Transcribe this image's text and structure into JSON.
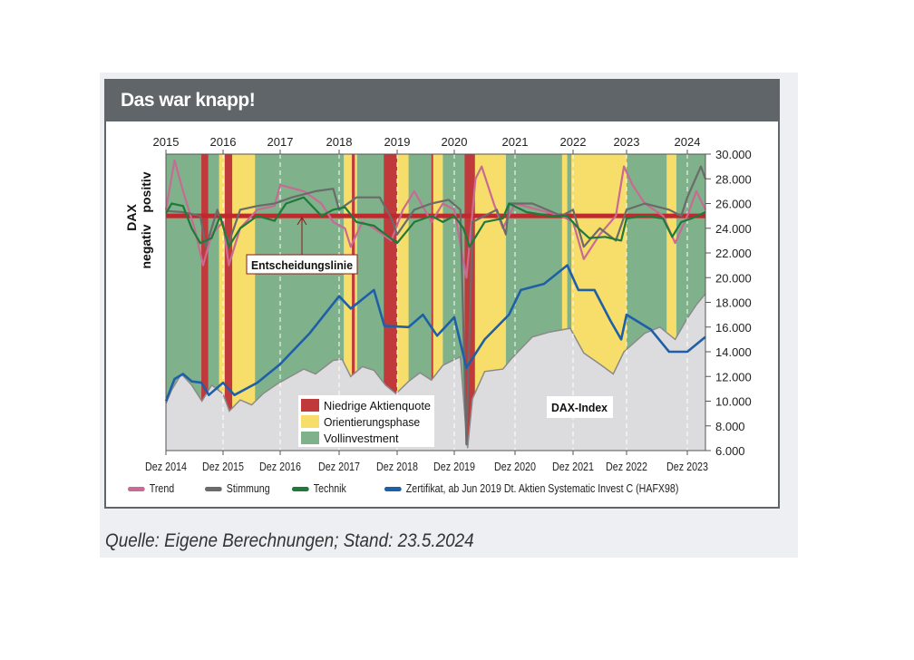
{
  "title": "Das war knapp!",
  "source": "Quelle: Eigene Berechnungen; Stand: 23.5.2024",
  "chart_data": {
    "type": "line",
    "title": "Das war knapp!",
    "ylabel": {
      "main": "DAX",
      "upper": "positiv",
      "lower": "negativ"
    },
    "ylim": [
      6000,
      30000
    ],
    "y_ticks": [
      6000,
      8000,
      10000,
      12000,
      14000,
      16000,
      18000,
      20000,
      22000,
      24000,
      26000,
      28000,
      30000
    ],
    "xlim": [
      2015.0,
      2024.4
    ],
    "top_ticks": [
      {
        "x": 2015,
        "label": "2015"
      },
      {
        "x": 2016,
        "label": "2016"
      },
      {
        "x": 2017,
        "label": "2017"
      },
      {
        "x": 2018,
        "label": "2018"
      },
      {
        "x": 2019,
        "label": "2019"
      },
      {
        "x": 2020,
        "label": "2020"
      },
      {
        "x": 2021,
        "label": "2021"
      },
      {
        "x": 2022,
        "label": "2022"
      },
      {
        "x": 2023,
        "label": "2023"
      },
      {
        "x": 2024,
        "label": "2024"
      }
    ],
    "bottom_ticks": [
      {
        "x": 2015,
        "label": "Dez 2014"
      },
      {
        "x": 2016,
        "label": "Dez 2015"
      },
      {
        "x": 2017,
        "label": "Dez 2016"
      },
      {
        "x": 2018,
        "label": "Dez 2017"
      },
      {
        "x": 2019,
        "label": "Dez 2018"
      },
      {
        "x": 2020,
        "label": "Dez 2019"
      },
      {
        "x": 2021,
        "label": "Dez 2020"
      },
      {
        "x": 2022,
        "label": "Dez 2021"
      },
      {
        "x": 2023,
        "label": "Dez 2022"
      },
      {
        "x": 2024,
        "label": "Dez 2023"
      }
    ],
    "decision_line": {
      "value": 25000,
      "label": "Entscheidungslinie",
      "color": "#c0282d"
    },
    "phase_legend": [
      {
        "key": "red",
        "label": "Niedrige Aktienquote",
        "color": "#c0393b"
      },
      {
        "key": "yellow",
        "label": "Orientierungsphase",
        "color": "#f7de6a"
      },
      {
        "key": "green",
        "label": "Vollinvestment",
        "color": "#7fb28a"
      }
    ],
    "phases": [
      [
        "green",
        2015.0,
        2015.62
      ],
      [
        "red",
        2015.62,
        2015.74
      ],
      [
        "green",
        2015.74,
        2015.93
      ],
      [
        "yellow",
        2015.93,
        2016.03
      ],
      [
        "red",
        2016.03,
        2016.16
      ],
      [
        "yellow",
        2016.16,
        2016.56
      ],
      [
        "green",
        2016.56,
        2018.08
      ],
      [
        "yellow",
        2018.08,
        2018.22
      ],
      [
        "red",
        2018.22,
        2018.27
      ],
      [
        "yellow",
        2018.27,
        2018.31
      ],
      [
        "green",
        2018.31,
        2018.77
      ],
      [
        "red",
        2018.77,
        2019.0
      ],
      [
        "yellow",
        2019.0,
        2019.2
      ],
      [
        "green",
        2019.2,
        2019.6
      ],
      [
        "red",
        2019.6,
        2019.63
      ],
      [
        "yellow",
        2019.63,
        2019.8
      ],
      [
        "green",
        2019.8,
        2020.17
      ],
      [
        "red",
        2020.17,
        2020.34
      ],
      [
        "yellow",
        2020.34,
        2020.85
      ],
      [
        "green",
        2020.85,
        2021.81
      ],
      [
        "yellow",
        2021.81,
        2021.9
      ],
      [
        "green",
        2021.9,
        2021.97
      ],
      [
        "yellow",
        2021.97,
        2023.0
      ],
      [
        "green",
        2023.0,
        2023.66
      ],
      [
        "yellow",
        2023.66,
        2023.82
      ],
      [
        "green",
        2023.82,
        2024.4
      ]
    ],
    "dax_index": {
      "label": "DAX-Index",
      "color": "#dcdcde",
      "line": "#8a8a8a",
      "points": [
        [
          2015.0,
          9800
        ],
        [
          2015.1,
          10900
        ],
        [
          2015.27,
          12200
        ],
        [
          2015.45,
          11300
        ],
        [
          2015.63,
          10000
        ],
        [
          2015.8,
          11300
        ],
        [
          2016.0,
          10600
        ],
        [
          2016.11,
          9200
        ],
        [
          2016.3,
          10100
        ],
        [
          2016.5,
          9700
        ],
        [
          2016.7,
          10600
        ],
        [
          2016.95,
          11400
        ],
        [
          2017.1,
          11800
        ],
        [
          2017.4,
          12600
        ],
        [
          2017.6,
          12200
        ],
        [
          2017.9,
          13300
        ],
        [
          2018.05,
          13400
        ],
        [
          2018.2,
          12000
        ],
        [
          2018.4,
          12800
        ],
        [
          2018.6,
          12500
        ],
        [
          2018.8,
          11300
        ],
        [
          2018.98,
          10600
        ],
        [
          2019.2,
          11600
        ],
        [
          2019.4,
          12300
        ],
        [
          2019.6,
          11700
        ],
        [
          2019.8,
          12900
        ],
        [
          2020.1,
          13600
        ],
        [
          2020.18,
          8400
        ],
        [
          2020.22,
          6200
        ],
        [
          2020.3,
          10200
        ],
        [
          2020.5,
          12400
        ],
        [
          2020.8,
          12600
        ],
        [
          2020.95,
          13500
        ],
        [
          2021.3,
          15200
        ],
        [
          2021.6,
          15600
        ],
        [
          2021.95,
          15900
        ],
        [
          2022.2,
          13900
        ],
        [
          2022.5,
          13000
        ],
        [
          2022.75,
          12200
        ],
        [
          2022.95,
          14000
        ],
        [
          2023.3,
          15500
        ],
        [
          2023.55,
          16000
        ],
        [
          2023.8,
          15000
        ],
        [
          2024.0,
          16700
        ],
        [
          2024.2,
          17800
        ],
        [
          2024.4,
          18700
        ]
      ]
    },
    "series": [
      {
        "name": "Trend",
        "color": "#c96a94",
        "points": [
          [
            2015.0,
            25500
          ],
          [
            2015.15,
            29500
          ],
          [
            2015.3,
            27000
          ],
          [
            2015.5,
            24000
          ],
          [
            2015.65,
            21000
          ],
          [
            2015.8,
            23500
          ],
          [
            2016.0,
            24500
          ],
          [
            2016.1,
            21000
          ],
          [
            2016.3,
            24000
          ],
          [
            2016.6,
            25500
          ],
          [
            2016.9,
            25800
          ],
          [
            2017.0,
            27500
          ],
          [
            2017.4,
            27000
          ],
          [
            2017.7,
            26000
          ],
          [
            2017.9,
            24500
          ],
          [
            2018.1,
            24000
          ],
          [
            2018.2,
            22500
          ],
          [
            2018.4,
            24500
          ],
          [
            2018.6,
            24000
          ],
          [
            2018.9,
            23000
          ],
          [
            2019.1,
            25500
          ],
          [
            2019.3,
            27000
          ],
          [
            2019.6,
            24500
          ],
          [
            2019.8,
            26000
          ],
          [
            2020.0,
            25500
          ],
          [
            2020.2,
            20000
          ],
          [
            2020.35,
            28000
          ],
          [
            2020.45,
            29000
          ],
          [
            2020.65,
            26000
          ],
          [
            2020.8,
            24000
          ],
          [
            2021.0,
            26000
          ],
          [
            2021.4,
            25500
          ],
          [
            2021.8,
            25000
          ],
          [
            2022.0,
            24500
          ],
          [
            2022.2,
            21500
          ],
          [
            2022.5,
            23500
          ],
          [
            2022.8,
            25000
          ],
          [
            2022.95,
            29000
          ],
          [
            2023.1,
            27500
          ],
          [
            2023.3,
            26000
          ],
          [
            2023.6,
            25000
          ],
          [
            2023.8,
            22800
          ],
          [
            2024.0,
            25000
          ],
          [
            2024.2,
            27000
          ],
          [
            2024.4,
            25500
          ]
        ]
      },
      {
        "name": "Stimmung",
        "color": "#6b6b6b",
        "points": [
          [
            2015.0,
            25400
          ],
          [
            2015.3,
            25300
          ],
          [
            2015.6,
            25000
          ],
          [
            2015.7,
            22500
          ],
          [
            2015.9,
            25500
          ],
          [
            2016.1,
            22800
          ],
          [
            2016.3,
            25500
          ],
          [
            2016.6,
            25800
          ],
          [
            2016.9,
            26000
          ],
          [
            2017.2,
            26500
          ],
          [
            2017.6,
            27000
          ],
          [
            2017.9,
            27200
          ],
          [
            2018.0,
            25500
          ],
          [
            2018.3,
            26500
          ],
          [
            2018.7,
            26500
          ],
          [
            2018.9,
            24800
          ],
          [
            2019.0,
            23500
          ],
          [
            2019.3,
            25500
          ],
          [
            2019.6,
            26000
          ],
          [
            2019.9,
            26300
          ],
          [
            2020.1,
            25500
          ],
          [
            2020.2,
            6500
          ],
          [
            2020.3,
            24500
          ],
          [
            2020.7,
            25500
          ],
          [
            2020.85,
            23500
          ],
          [
            2020.9,
            26000
          ],
          [
            2021.3,
            26000
          ],
          [
            2021.8,
            25000
          ],
          [
            2022.0,
            25500
          ],
          [
            2022.2,
            22500
          ],
          [
            2022.5,
            24000
          ],
          [
            2022.8,
            23000
          ],
          [
            2023.0,
            25500
          ],
          [
            2023.3,
            26000
          ],
          [
            2023.7,
            25500
          ],
          [
            2023.9,
            25000
          ],
          [
            2024.0,
            26500
          ],
          [
            2024.3,
            29000
          ],
          [
            2024.4,
            28000
          ]
        ]
      },
      {
        "name": "Technik",
        "color": "#1f7a3a",
        "points": [
          [
            2015.0,
            25200
          ],
          [
            2015.1,
            26000
          ],
          [
            2015.3,
            25800
          ],
          [
            2015.45,
            24000
          ],
          [
            2015.6,
            22800
          ],
          [
            2015.8,
            23200
          ],
          [
            2015.95,
            25000
          ],
          [
            2016.1,
            22500
          ],
          [
            2016.3,
            24000
          ],
          [
            2016.6,
            25000
          ],
          [
            2016.9,
            24600
          ],
          [
            2017.1,
            26000
          ],
          [
            2017.4,
            26500
          ],
          [
            2017.7,
            25000
          ],
          [
            2017.9,
            25500
          ],
          [
            2018.1,
            25700
          ],
          [
            2018.3,
            24500
          ],
          [
            2018.6,
            24200
          ],
          [
            2019.0,
            22800
          ],
          [
            2019.3,
            24500
          ],
          [
            2019.6,
            25000
          ],
          [
            2019.8,
            24500
          ],
          [
            2020.0,
            25000
          ],
          [
            2020.15,
            24000
          ],
          [
            2020.25,
            22500
          ],
          [
            2020.5,
            24500
          ],
          [
            2020.8,
            24800
          ],
          [
            2020.9,
            26000
          ],
          [
            2021.2,
            25300
          ],
          [
            2021.6,
            25000
          ],
          [
            2021.9,
            25000
          ],
          [
            2022.1,
            24000
          ],
          [
            2022.3,
            23200
          ],
          [
            2022.6,
            23300
          ],
          [
            2022.9,
            23000
          ],
          [
            2023.0,
            24800
          ],
          [
            2023.3,
            25000
          ],
          [
            2023.6,
            24800
          ],
          [
            2023.75,
            23300
          ],
          [
            2023.9,
            24500
          ],
          [
            2024.1,
            24800
          ],
          [
            2024.4,
            25300
          ]
        ]
      },
      {
        "name": "Zertifikat, ab Jun 2019 Dt. Aktien Systematic Invest C (HAFX98)",
        "color": "#1f5fa8",
        "points": [
          [
            2015.0,
            10000
          ],
          [
            2015.15,
            11800
          ],
          [
            2015.3,
            12200
          ],
          [
            2015.45,
            11600
          ],
          [
            2015.62,
            11500
          ],
          [
            2015.75,
            10500
          ],
          [
            2016.0,
            11500
          ],
          [
            2016.2,
            10500
          ],
          [
            2016.6,
            11500
          ],
          [
            2017.0,
            13000
          ],
          [
            2017.5,
            15500
          ],
          [
            2018.0,
            18500
          ],
          [
            2018.2,
            17500
          ],
          [
            2018.6,
            19000
          ],
          [
            2018.78,
            16100
          ],
          [
            2019.2,
            16000
          ],
          [
            2019.45,
            17000
          ],
          [
            2019.7,
            15300
          ],
          [
            2020.0,
            16800
          ],
          [
            2020.2,
            12700
          ],
          [
            2020.5,
            15000
          ],
          [
            2020.9,
            17000
          ],
          [
            2021.1,
            19000
          ],
          [
            2021.5,
            19500
          ],
          [
            2021.9,
            21000
          ],
          [
            2022.1,
            19000
          ],
          [
            2022.4,
            19000
          ],
          [
            2022.7,
            16500
          ],
          [
            2022.9,
            15000
          ],
          [
            2023.0,
            17000
          ],
          [
            2023.4,
            15800
          ],
          [
            2023.7,
            14000
          ],
          [
            2024.0,
            14000
          ],
          [
            2024.4,
            15200
          ]
        ]
      }
    ]
  }
}
